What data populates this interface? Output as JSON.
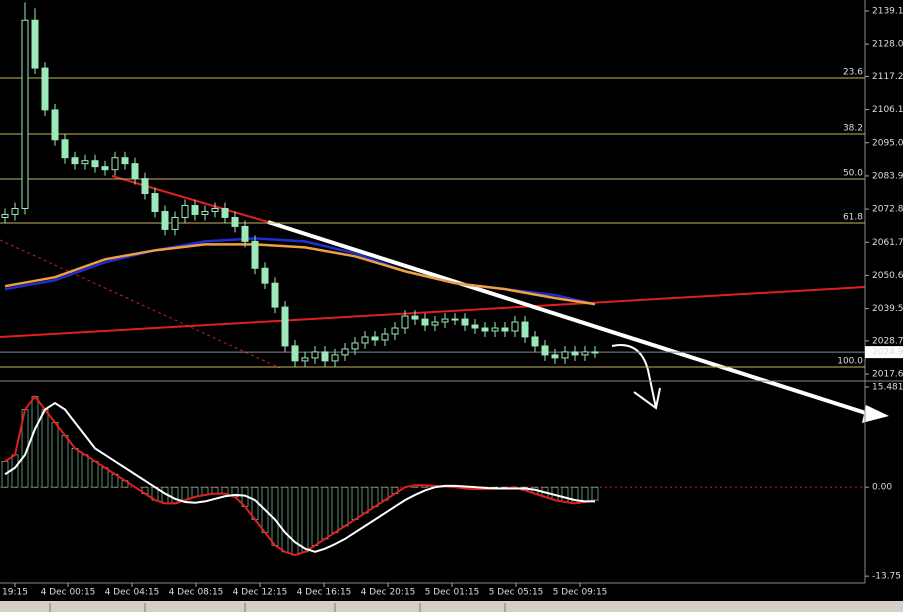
{
  "chart_data": [
    {
      "type": "candlestick",
      "x": [
        0,
        1,
        2,
        3,
        4,
        5,
        6,
        7,
        8,
        9,
        10,
        11,
        12,
        13,
        14,
        15,
        16,
        17,
        18,
        19,
        20,
        21,
        22,
        23,
        24,
        25,
        26,
        27,
        28,
        29,
        30,
        31,
        32,
        33,
        34,
        35,
        36,
        37,
        38,
        39,
        40,
        41,
        42,
        43,
        44,
        45,
        46,
        47,
        48,
        49,
        50,
        51,
        52,
        53,
        54,
        55,
        56,
        57,
        58,
        59
      ],
      "open": [
        2070,
        2071,
        2073,
        2136,
        2120,
        2106,
        2096,
        2090,
        2088,
        2089,
        2087,
        2086,
        2090,
        2088,
        2083,
        2078,
        2072,
        2066,
        2070,
        2074,
        2071,
        2072,
        2073,
        2070,
        2067,
        2062,
        2053,
        2048,
        2040,
        2027,
        2022,
        2023,
        2025,
        2022,
        2024,
        2026,
        2028,
        2030,
        2029,
        2031,
        2033,
        2037,
        2036,
        2034,
        2035,
        2036,
        2036,
        2034,
        2033,
        2032,
        2033,
        2032,
        2035,
        2030,
        2027,
        2024,
        2023,
        2025,
        2024,
        2025
      ],
      "high": [
        2073,
        2075,
        2142,
        2140,
        2122,
        2108,
        2098,
        2092,
        2091,
        2091,
        2089,
        2092,
        2092,
        2090,
        2085,
        2080,
        2074,
        2072,
        2076,
        2076,
        2074,
        2075,
        2075,
        2072,
        2069,
        2064,
        2055,
        2050,
        2042,
        2029,
        2025,
        2027,
        2027,
        2026,
        2028,
        2030,
        2032,
        2032,
        2033,
        2035,
        2039,
        2039,
        2038,
        2037,
        2038,
        2038,
        2038,
        2036,
        2035,
        2035,
        2035,
        2037,
        2037,
        2032,
        2029,
        2026,
        2027,
        2027,
        2027,
        2027
      ],
      "low": [
        2068,
        2069,
        2071,
        2118,
        2104,
        2094,
        2088,
        2086,
        2086,
        2085,
        2084,
        2084,
        2086,
        2081,
        2076,
        2070,
        2064,
        2064,
        2068,
        2069,
        2069,
        2070,
        2068,
        2065,
        2060,
        2051,
        2046,
        2038,
        2025,
        2020,
        2020,
        2021,
        2020,
        2020,
        2022,
        2024,
        2026,
        2027,
        2027,
        2029,
        2031,
        2034,
        2032,
        2032,
        2033,
        2034,
        2032,
        2031,
        2030,
        2030,
        2030,
        2030,
        2028,
        2025,
        2022,
        2021,
        2021,
        2022,
        2022,
        2023
      ],
      "close": [
        2071,
        2073,
        2136,
        2120,
        2106,
        2096,
        2090,
        2088,
        2089,
        2087,
        2086,
        2090,
        2088,
        2083,
        2078,
        2072,
        2066,
        2070,
        2074,
        2071,
        2072,
        2073,
        2070,
        2067,
        2062,
        2053,
        2048,
        2040,
        2027,
        2022,
        2023,
        2025,
        2022,
        2024,
        2026,
        2028,
        2030,
        2029,
        2031,
        2033,
        2037,
        2036,
        2034,
        2035,
        2036,
        2036,
        2034,
        2033,
        2032,
        2033,
        2032,
        2035,
        2030,
        2027,
        2024,
        2023,
        2025,
        2024,
        2025,
        2025
      ],
      "up_color": "#9be8b8",
      "down_color": "#9be8b8",
      "lines": [
        {
          "color": "#1e2fd0",
          "x": [
            0,
            5,
            10,
            15,
            20,
            25,
            30,
            35,
            40,
            45,
            50,
            55,
            59
          ],
          "values": [
            2046,
            2049,
            2055,
            2059,
            2062,
            2063,
            2062,
            2058,
            2052,
            2048,
            2046,
            2044,
            2041
          ]
        },
        {
          "color": "#f0a040",
          "x": [
            0,
            5,
            10,
            15,
            20,
            25,
            30,
            35,
            40,
            45,
            50,
            55,
            59
          ],
          "values": [
            2047,
            2050,
            2056,
            2059,
            2061,
            2061,
            2060,
            2057,
            2052,
            2048,
            2046,
            2043,
            2041
          ]
        }
      ],
      "levels": [
        {
          "value": 2116.67,
          "label": "23.6"
        },
        {
          "value": 2097.93,
          "label": "38.2"
        },
        {
          "value": 2082.87,
          "label": "50.0"
        },
        {
          "value": 2068.14,
          "label": "61.8"
        },
        {
          "value": 2019.95,
          "label": "100.0"
        }
      ],
      "level_color": "#c8b460",
      "current_price": 2024.93,
      "xlim": [
        -0.5,
        86
      ],
      "ylim": [
        2015.6,
        2142.78
      ],
      "yticks": [
        {
          "value": 2139.1,
          "label": "2139.10"
        },
        {
          "value": 2128,
          "label": "2128.00"
        },
        {
          "value": 2117.2,
          "label": "2117.20"
        },
        {
          "value": 2106.1,
          "label": "2106.10"
        },
        {
          "value": 2095,
          "label": "2095.00"
        },
        {
          "value": 2083.9,
          "label": "2083.90"
        },
        {
          "value": 2072.8,
          "label": "2072.80"
        },
        {
          "value": 2061.7,
          "label": "2061.70"
        },
        {
          "value": 2050.6,
          "label": "2050.60"
        },
        {
          "value": 2039.5,
          "label": "2039.50"
        },
        {
          "value": 2028.7,
          "label": "2028.70"
        },
        {
          "value": 2017.6,
          "label": "2017.60"
        }
      ]
    },
    {
      "type": "bar",
      "x": [
        0,
        1,
        2,
        3,
        4,
        5,
        6,
        7,
        8,
        9,
        10,
        11,
        12,
        13,
        14,
        15,
        16,
        17,
        18,
        19,
        20,
        21,
        22,
        23,
        24,
        25,
        26,
        27,
        28,
        29,
        30,
        31,
        32,
        33,
        34,
        35,
        36,
        37,
        38,
        39,
        40,
        41,
        42,
        43,
        44,
        45,
        46,
        47,
        48,
        49,
        50,
        51,
        52,
        53,
        54,
        55,
        56,
        57,
        58,
        59
      ],
      "values": [
        4,
        5,
        12,
        14,
        12,
        10,
        8,
        6,
        5,
        4,
        3,
        2,
        1,
        0,
        -1,
        -2,
        -2.5,
        -2.5,
        -2,
        -1.5,
        -1.2,
        -1,
        -1,
        -1.5,
        -3,
        -5,
        -7,
        -9,
        -10,
        -10.5,
        -10,
        -9,
        -8,
        -7,
        -6,
        -5,
        -4,
        -3,
        -2,
        -1,
        0,
        0.3,
        0.3,
        0.2,
        0.1,
        0,
        -0.2,
        -0.3,
        -0.3,
        -0.2,
        -0.2,
        0,
        -0.5,
        -1,
        -1.5,
        -2,
        -2.3,
        -2.5,
        -2.3,
        -2
      ],
      "color": "#9be8b8",
      "series": [
        {
          "color": "#e02020",
          "values": [
            4,
            5,
            12,
            14,
            12,
            10,
            8,
            6,
            5,
            4,
            3,
            2,
            1,
            0,
            -1,
            -2,
            -2.5,
            -2.5,
            -2,
            -1.5,
            -1.2,
            -1,
            -1,
            -1.5,
            -3,
            -5,
            -7,
            -9,
            -10,
            -10.5,
            -10,
            -9,
            -8,
            -7,
            -6,
            -5,
            -4,
            -3,
            -2,
            -1,
            0,
            0.3,
            0.3,
            0.2,
            0.1,
            0,
            -0.2,
            -0.3,
            -0.3,
            -0.2,
            -0.2,
            0,
            -0.5,
            -1,
            -1.5,
            -2,
            -2.3,
            -2.5,
            -2.3,
            -2
          ]
        },
        {
          "color": "#ffffff",
          "values": [
            2,
            3,
            5,
            9,
            12,
            13,
            12,
            10,
            8,
            6,
            5,
            4,
            3,
            2,
            1,
            0,
            -1,
            -1.8,
            -2.3,
            -2.4,
            -2.2,
            -1.8,
            -1.4,
            -1.2,
            -1.3,
            -2,
            -3.5,
            -5,
            -7,
            -8.5,
            -9.5,
            -10,
            -9.5,
            -8.8,
            -8,
            -7,
            -6,
            -5,
            -4,
            -3,
            -2,
            -1.2,
            -0.5,
            0,
            0.2,
            0.2,
            0.1,
            0,
            -0.1,
            -0.2,
            -0.2,
            -0.2,
            -0.2,
            -0.4,
            -0.8,
            -1.2,
            -1.6,
            -2,
            -2.2,
            -2.2
          ]
        }
      ],
      "xlim": [
        -0.5,
        86
      ],
      "ylim": [
        -14.5,
        16.1
      ],
      "yticks": [
        15.481,
        {
          "value": 0,
          "label": "0.00"
        },
        -13.75
      ],
      "xticks": [
        {
          "value": 1,
          "label": "19:15"
        },
        {
          "value": 6.3,
          "label": "4 Dec 00:15"
        },
        {
          "value": 12.7,
          "label": "4 Dec 04:15"
        },
        {
          "value": 19.1,
          "label": "4 Dec 08:15"
        },
        {
          "value": 25.5,
          "label": "4 Dec 12:15"
        },
        {
          "value": 31.9,
          "label": "4 Dec 16:15"
        },
        {
          "value": 38.3,
          "label": "4 Dec 20:15"
        },
        {
          "value": 44.7,
          "label": "5 Dec 01:15"
        },
        {
          "value": 51.1,
          "label": "5 Dec 05:15"
        },
        {
          "value": 57.5,
          "label": "5 Dec 09:15"
        }
      ]
    }
  ]
}
